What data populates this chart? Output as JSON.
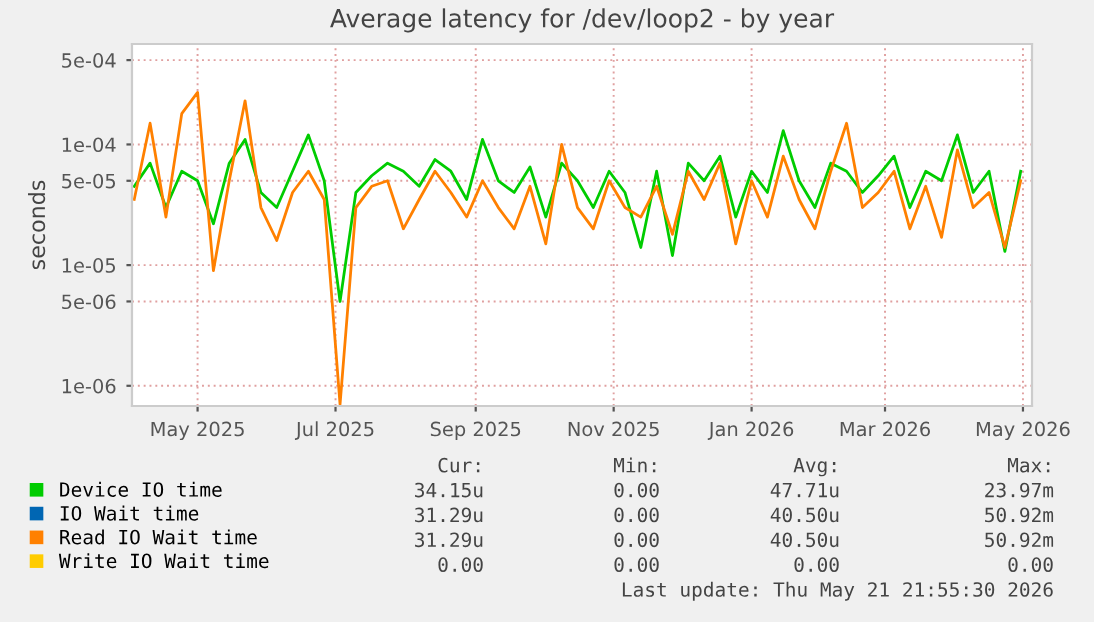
{
  "chart_data": {
    "type": "line",
    "title": "Average latency for /dev/loop2 - by year",
    "ylabel": "seconds",
    "log": "y",
    "grid": true,
    "legend": "bottom",
    "x": [
      "2025-04-03",
      "2025-04-10",
      "2025-04-17",
      "2025-04-24",
      "2025-05-01",
      "2025-05-08",
      "2025-05-15",
      "2025-05-22",
      "2025-05-29",
      "2025-06-05",
      "2025-06-12",
      "2025-06-19",
      "2025-06-26",
      "2025-07-03",
      "2025-07-10",
      "2025-07-17",
      "2025-07-24",
      "2025-07-31",
      "2025-08-07",
      "2025-08-14",
      "2025-08-21",
      "2025-08-28",
      "2025-09-04",
      "2025-09-11",
      "2025-09-18",
      "2025-09-25",
      "2025-10-02",
      "2025-10-09",
      "2025-10-16",
      "2025-10-23",
      "2025-10-30",
      "2025-11-06",
      "2025-11-13",
      "2025-11-20",
      "2025-11-27",
      "2025-12-04",
      "2025-12-11",
      "2025-12-18",
      "2025-12-25",
      "2026-01-01",
      "2026-01-08",
      "2026-01-15",
      "2026-01-22",
      "2026-01-29",
      "2026-02-05",
      "2026-02-12",
      "2026-02-19",
      "2026-02-26",
      "2026-03-05",
      "2026-03-12",
      "2026-03-19",
      "2026-03-26",
      "2026-04-02",
      "2026-04-09",
      "2026-04-16",
      "2026-04-23",
      "2026-04-30"
    ],
    "xlim": [
      "2025-04-02",
      "2026-05-05"
    ],
    "xticks": [
      {
        "value": "2025-05-01",
        "label": "May 2025"
      },
      {
        "value": "2025-07-01",
        "label": "Jul 2025"
      },
      {
        "value": "2025-09-01",
        "label": "Sep 2025"
      },
      {
        "value": "2025-11-01",
        "label": "Nov 2025"
      },
      {
        "value": "2026-01-01",
        "label": "Jan 2026"
      },
      {
        "value": "2026-03-01",
        "label": "Mar 2026"
      },
      {
        "value": "2026-05-01",
        "label": "May 2026"
      }
    ],
    "ylim": [
      6.8e-07,
      0.00068
    ],
    "yticks": [
      {
        "value": 1e-06,
        "label": "1e-06"
      },
      {
        "value": 5e-06,
        "label": "5e-06"
      },
      {
        "value": 1e-05,
        "label": "1e-05"
      },
      {
        "value": 5e-05,
        "label": "5e-05"
      },
      {
        "value": 0.0001,
        "label": "1e-04"
      },
      {
        "value": 0.0005,
        "label": "5e-04"
      }
    ],
    "series": [
      {
        "name": "Device IO time",
        "color": "#00cc00",
        "values": [
          4.5e-05,
          7e-05,
          3e-05,
          6e-05,
          5e-05,
          2.2e-05,
          7e-05,
          0.00011,
          4e-05,
          3e-05,
          6e-05,
          0.00012,
          5e-05,
          5e-06,
          4e-05,
          5.5e-05,
          7e-05,
          6e-05,
          4.5e-05,
          7.5e-05,
          6e-05,
          3.5e-05,
          0.00011,
          5e-05,
          4e-05,
          6.5e-05,
          2.5e-05,
          7e-05,
          5e-05,
          3e-05,
          6e-05,
          4e-05,
          1.4e-05,
          6e-05,
          1.2e-05,
          7e-05,
          5e-05,
          8e-05,
          2.5e-05,
          6e-05,
          4e-05,
          0.00013,
          5e-05,
          3e-05,
          7e-05,
          6e-05,
          4e-05,
          5.5e-05,
          8e-05,
          3e-05,
          6e-05,
          5e-05,
          0.00012,
          4e-05,
          6e-05,
          1.3e-05,
          6e-05
        ]
      },
      {
        "name": "IO Wait time",
        "color": "#0066b3",
        "values": [
          null,
          null,
          null,
          null,
          null,
          null,
          null,
          null,
          null,
          null,
          null,
          null,
          null,
          null,
          null,
          null,
          null,
          null,
          null,
          null,
          null,
          null,
          null,
          null,
          null,
          null,
          null,
          null,
          null,
          null,
          null,
          null,
          null,
          null,
          null,
          null,
          null,
          null,
          null,
          null,
          null,
          null,
          null,
          null,
          null,
          null,
          null,
          null,
          null,
          null,
          null,
          null,
          null,
          null,
          null,
          null,
          null
        ]
      },
      {
        "name": "Read IO Wait time",
        "color": "#ff8000",
        "values": [
          3.5e-05,
          0.00015,
          2.5e-05,
          0.00018,
          0.00027,
          9e-06,
          5e-05,
          0.00023,
          3e-05,
          1.6e-05,
          4e-05,
          6e-05,
          3.5e-05,
          7e-07,
          3e-05,
          4.5e-05,
          5e-05,
          2e-05,
          3.5e-05,
          6e-05,
          4e-05,
          2.5e-05,
          5e-05,
          3e-05,
          2e-05,
          4.5e-05,
          1.5e-05,
          0.0001,
          3e-05,
          2e-05,
          5e-05,
          3e-05,
          2.5e-05,
          4.5e-05,
          1.8e-05,
          6e-05,
          3.5e-05,
          7e-05,
          1.5e-05,
          5e-05,
          2.5e-05,
          8e-05,
          3.5e-05,
          2e-05,
          6e-05,
          0.00015,
          3e-05,
          4e-05,
          6e-05,
          2e-05,
          4.5e-05,
          1.7e-05,
          9e-05,
          3e-05,
          4e-05,
          1.4e-05,
          5e-05
        ]
      },
      {
        "name": "Write IO Wait time",
        "color": "#ffcc00",
        "values": [
          null,
          null,
          null,
          null,
          null,
          null,
          null,
          null,
          null,
          null,
          null,
          null,
          null,
          null,
          null,
          null,
          null,
          null,
          null,
          null,
          null,
          null,
          null,
          null,
          null,
          null,
          null,
          null,
          null,
          null,
          null,
          null,
          null,
          null,
          null,
          null,
          null,
          null,
          null,
          null,
          null,
          null,
          null,
          null,
          null,
          null,
          null,
          null,
          null,
          null,
          null,
          null,
          null,
          null,
          null,
          null,
          null
        ]
      }
    ],
    "annotations": [
      "Cur:",
      "Min:",
      "Avg:",
      "Max:",
      "34.15u",
      "0.00",
      "47.71u",
      "23.97m",
      "31.29u",
      "0.00",
      "40.50u",
      "50.92m",
      "31.29u",
      "0.00",
      "40.50u",
      "50.92m",
      "0.00",
      "0.00",
      "0.00",
      "0.00",
      "Last update: Thu May 21 21:55:30 2026"
    ]
  }
}
